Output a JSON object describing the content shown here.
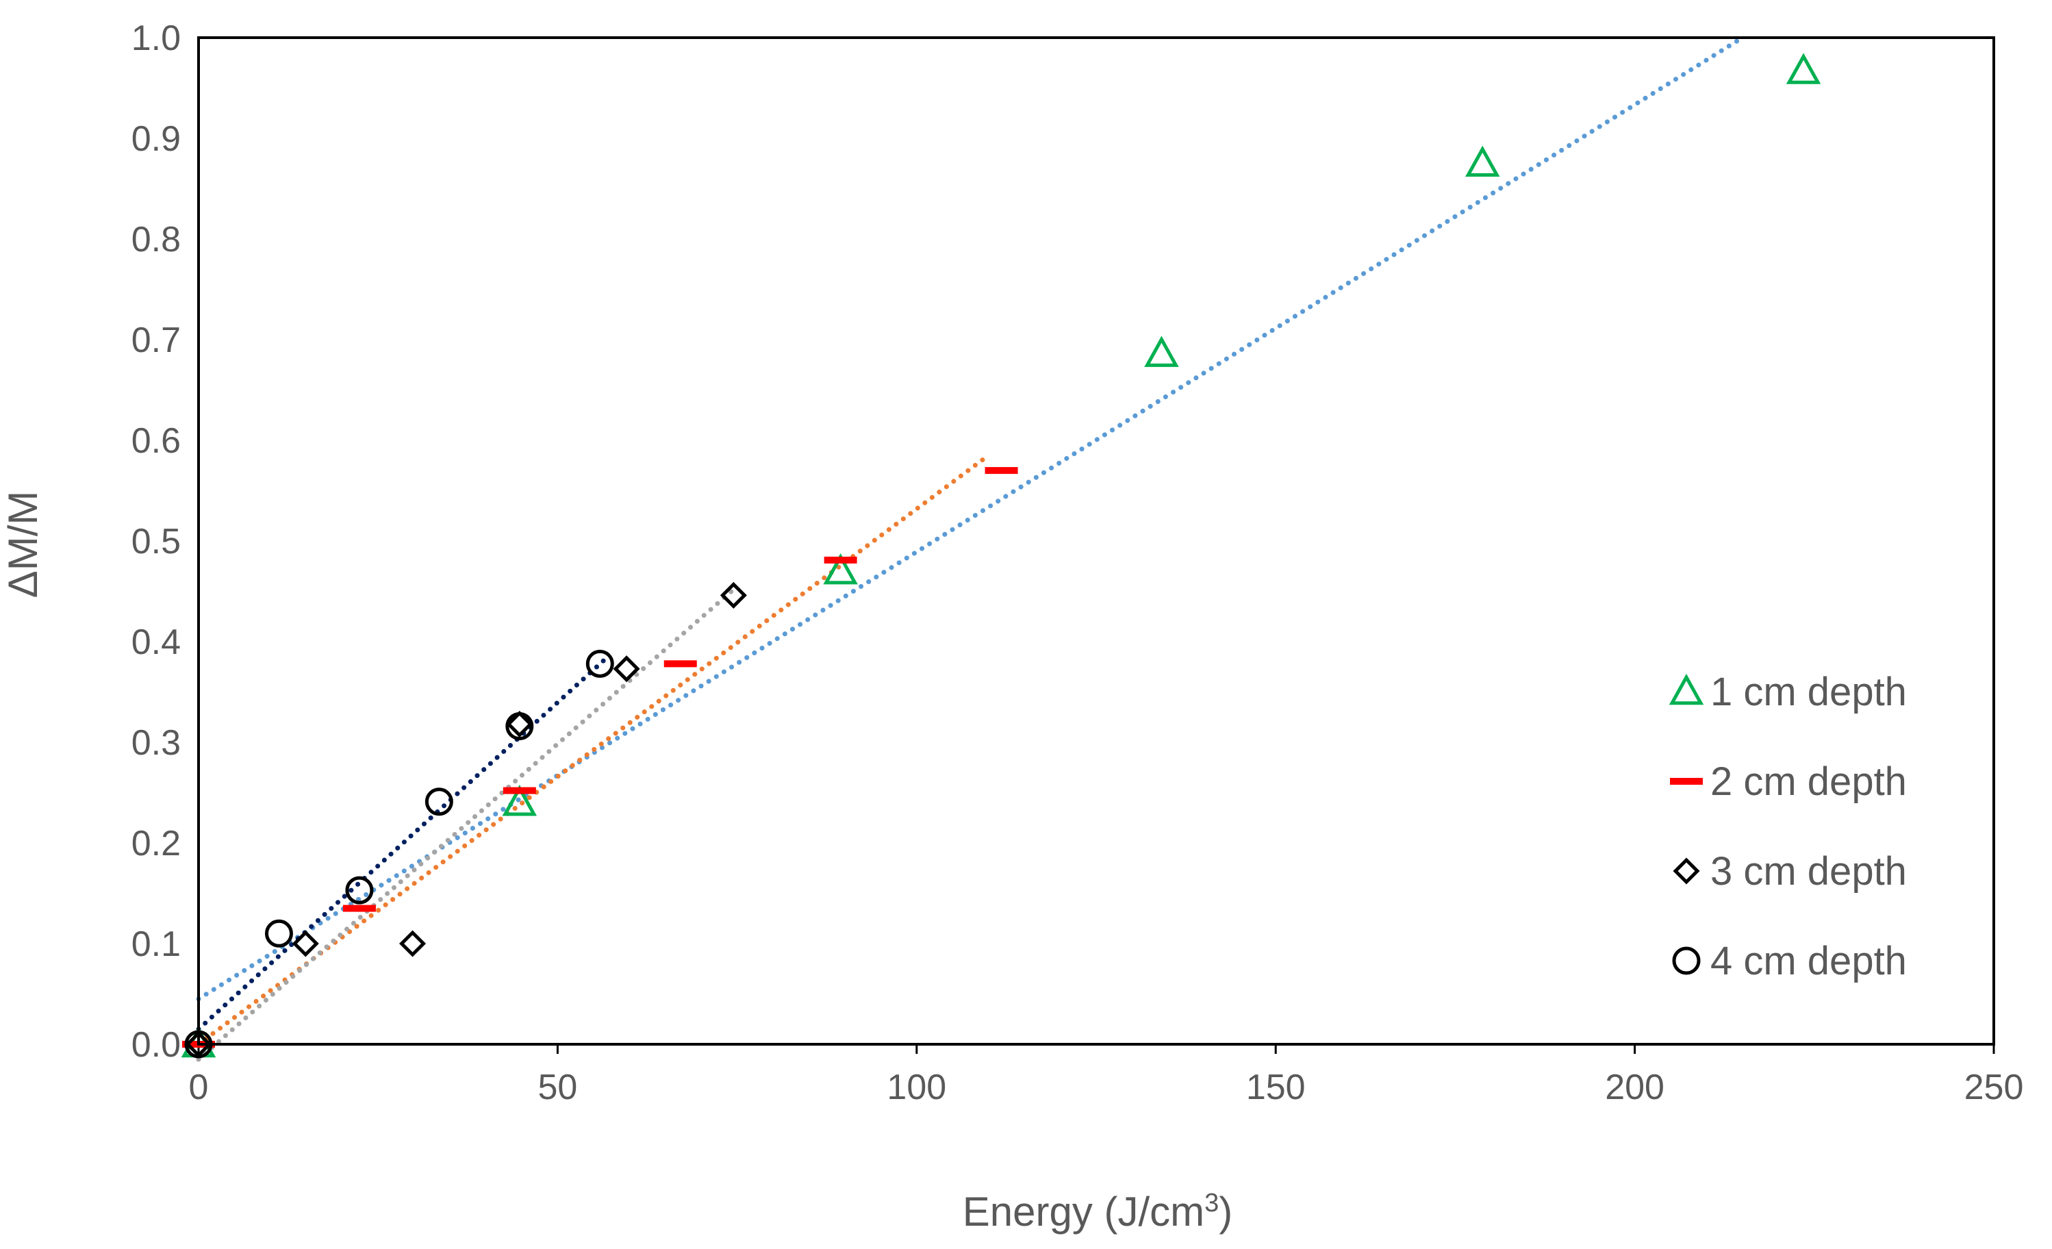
{
  "chart_data": {
    "type": "scatter",
    "xlabel": "Energy (J/cm",
    "xlabel_superscript": "3",
    "xlabel_suffix": ")",
    "ylabel": "ΔM/M",
    "xlim": [
      0,
      250
    ],
    "ylim": [
      0,
      1.0
    ],
    "x_ticks": [
      "0",
      "50",
      "100",
      "150",
      "200",
      "250"
    ],
    "y_ticks": [
      "0.0",
      "0.1",
      "0.2",
      "0.3",
      "0.4",
      "0.5",
      "0.6",
      "0.7",
      "0.8",
      "0.9",
      "1.0"
    ],
    "grid": false,
    "legend_position": "right",
    "series": [
      {
        "name": "1 cm depth",
        "marker": "triangle",
        "color": "#00B050",
        "x": [
          0,
          44.7,
          89.4,
          134.1,
          178.8,
          223.5
        ],
        "y": [
          0.0,
          0.24,
          0.47,
          0.686,
          0.875,
          0.967
        ],
        "trendline": {
          "color": "#5B9BD5",
          "x": [
            0,
            215
          ],
          "y": [
            0.045,
            1.0
          ]
        }
      },
      {
        "name": "2 cm depth",
        "marker": "dash",
        "color": "#FF0000",
        "x": [
          0,
          22.4,
          44.7,
          67.1,
          89.4,
          111.8
        ],
        "y": [
          0.0,
          0.135,
          0.252,
          0.378,
          0.481,
          0.57
        ],
        "trendline": {
          "color": "#ED7D31",
          "x": [
            0,
            110
          ],
          "y": [
            0.0,
            0.585
          ]
        }
      },
      {
        "name": "3 cm depth",
        "marker": "diamond",
        "color": "#000000",
        "x": [
          0,
          14.9,
          29.8,
          44.7,
          59.6,
          74.5
        ],
        "y": [
          0.0,
          0.1,
          0.1,
          0.318,
          0.373,
          0.446
        ],
        "trendline": {
          "color": "#A5A5A5",
          "x": [
            0,
            75
          ],
          "y": [
            -0.015,
            0.455
          ]
        }
      },
      {
        "name": "4 cm depth",
        "marker": "circle",
        "color": "#000000",
        "x": [
          0,
          11.2,
          22.4,
          33.5,
          44.7,
          55.9
        ],
        "y": [
          0.0,
          0.11,
          0.153,
          0.241,
          0.316,
          0.378
        ],
        "trendline": {
          "color": "#002060",
          "x": [
            0,
            57
          ],
          "y": [
            0.015,
            0.385
          ]
        }
      }
    ]
  }
}
